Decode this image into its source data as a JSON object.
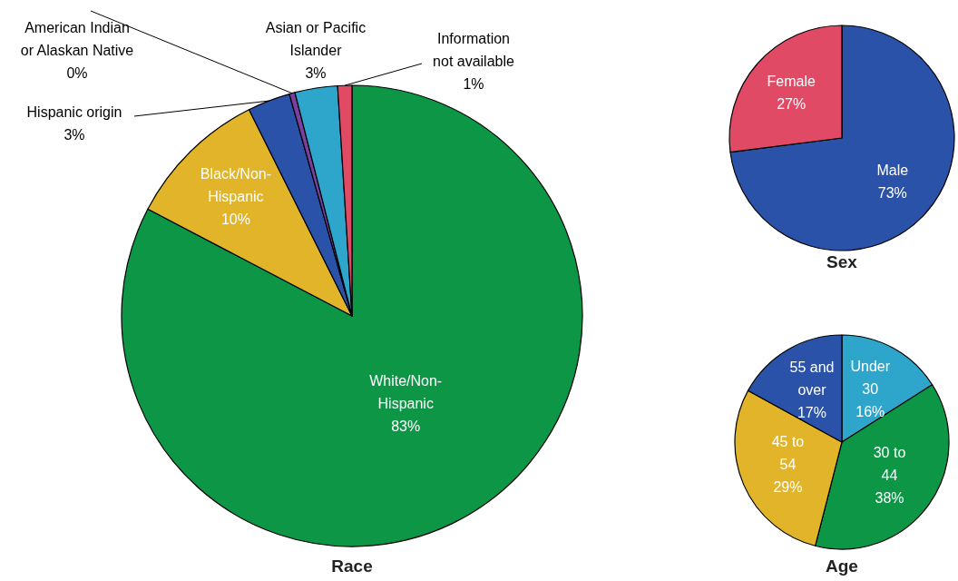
{
  "chart_data": [
    {
      "type": "pie",
      "title": "Race",
      "categories": [
        "White/Non-Hispanic",
        "Black/Non-Hispanic",
        "Hispanic origin",
        "American Indian or Alaskan Native",
        "Asian or Pacific Islander",
        "Information not available"
      ],
      "values": [
        83,
        10,
        3,
        0.4,
        3,
        1
      ],
      "value_labels": [
        "83%",
        "10%",
        "3%",
        "0%",
        "3%",
        "1%"
      ],
      "colors": [
        "#0e9647",
        "#e2b42a",
        "#2a52a8",
        "#7b3f9e",
        "#2ea6cc",
        "#e04a65"
      ]
    },
    {
      "type": "pie",
      "title": "Sex",
      "categories": [
        "Male",
        "Female"
      ],
      "values": [
        73,
        27
      ],
      "value_labels": [
        "73%",
        "27%"
      ],
      "colors": [
        "#2a52a8",
        "#e04a65"
      ]
    },
    {
      "type": "pie",
      "title": "Age",
      "categories": [
        "Under 30",
        "30 to 44",
        "45 to 54",
        "55 and over"
      ],
      "values": [
        16,
        38,
        29,
        17
      ],
      "value_labels": [
        "16%",
        "38%",
        "29%",
        "17%"
      ],
      "colors": [
        "#2ea6cc",
        "#0e9647",
        "#e2b42a",
        "#2a52a8"
      ]
    }
  ]
}
